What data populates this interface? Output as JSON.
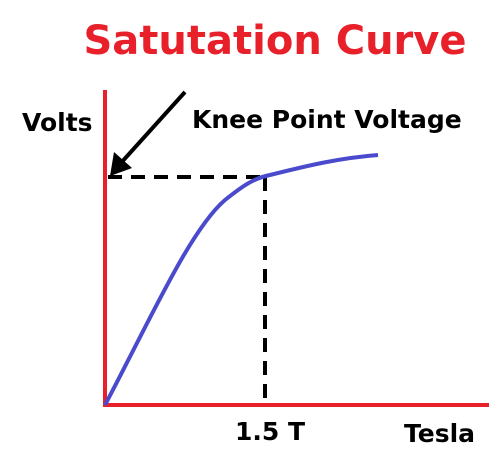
{
  "title": "Satutation Curve",
  "y_axis_label": "Volts",
  "x_axis_label": "Tesla",
  "annotation": "Knee Point Voltage",
  "x_tick": "1.5 T"
}
